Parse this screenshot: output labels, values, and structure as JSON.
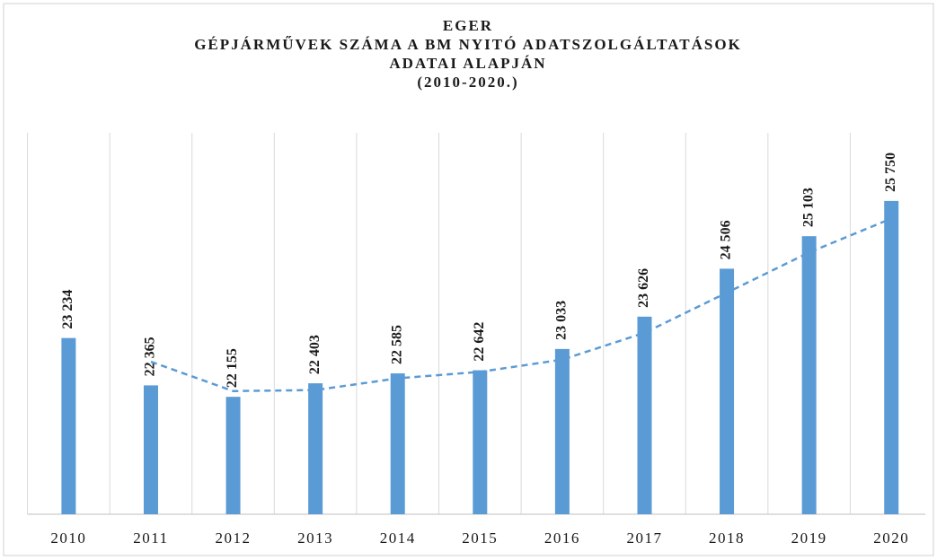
{
  "chart_data": {
    "type": "bar",
    "title": [
      "EGER",
      "GÉPJÁRMŰVEK SZÁMA A BM NYITÓ ADATSZOLGÁLTATÁSOK",
      "ADATAI ALAPJÁN",
      "(2010-2020.)"
    ],
    "categories": [
      "2010",
      "2011",
      "2012",
      "2013",
      "2014",
      "2015",
      "2016",
      "2017",
      "2018",
      "2019",
      "2020"
    ],
    "values": [
      23234,
      22365,
      22155,
      22403,
      22585,
      22642,
      23033,
      23626,
      24506,
      25103,
      25750
    ],
    "value_labels": [
      "23 234",
      "22 365",
      "22 155",
      "22 403",
      "22 585",
      "22 642",
      "23 033",
      "23 626",
      "24 506",
      "25 103",
      "25 750"
    ],
    "color": "#5b9bd5",
    "ylim": [
      20000,
      27000
    ],
    "grid": "vertical",
    "trendline": {
      "type": "moving_average",
      "period": 2,
      "color": "#5b9bd5",
      "dashed": true
    }
  }
}
